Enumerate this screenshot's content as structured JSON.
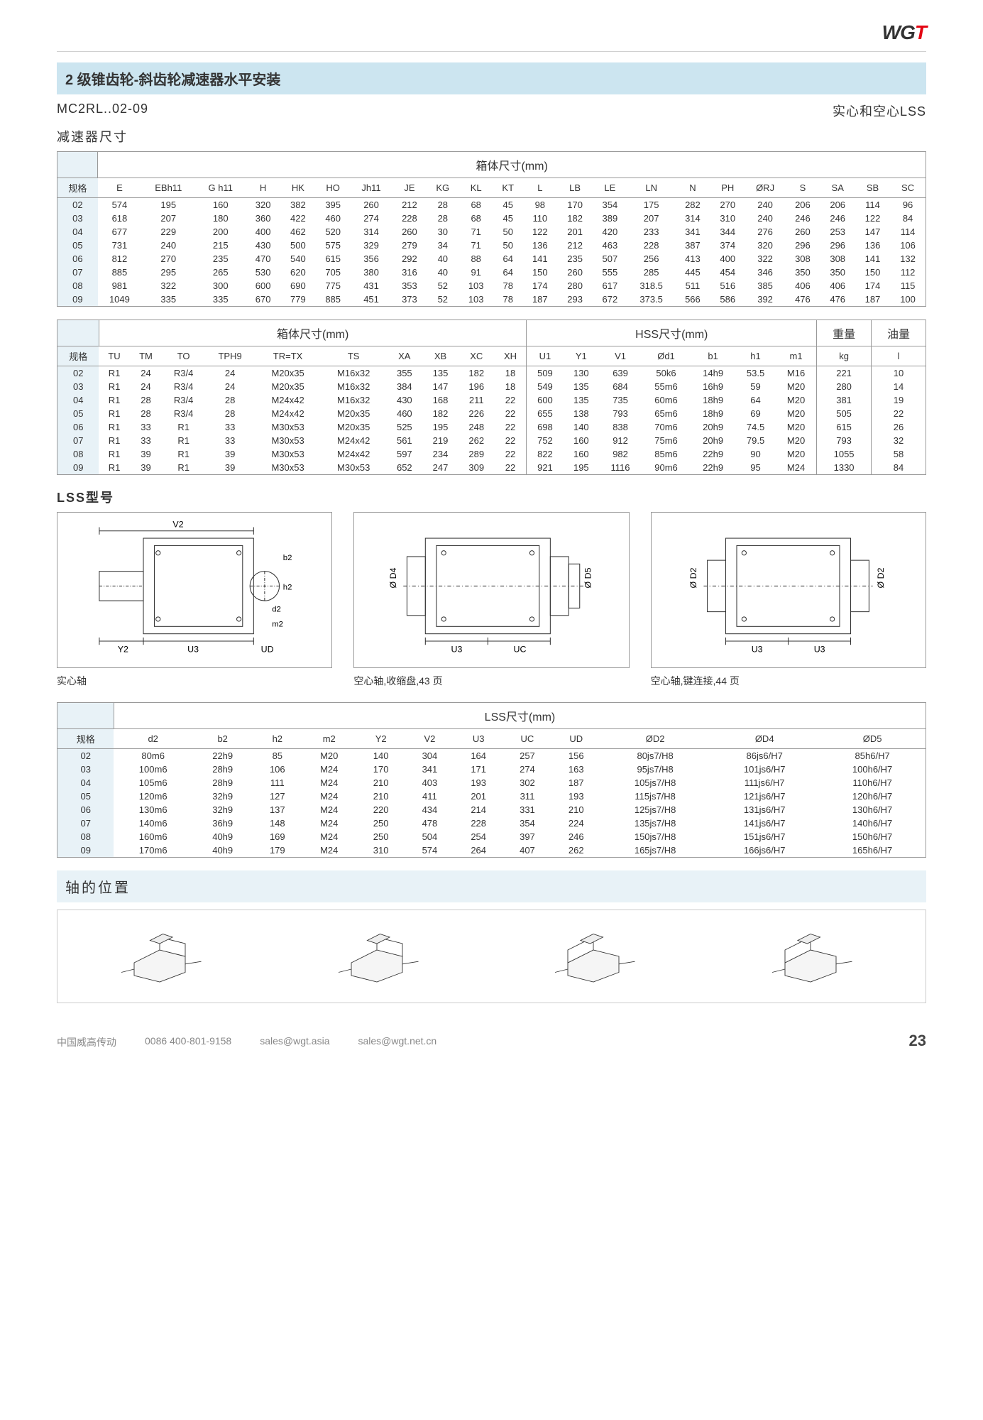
{
  "logo_black": "WG",
  "logo_red": "T",
  "title": "2 级锥齿轮-斜齿轮减速器水平安装",
  "model_code": "MC2RL..02-09",
  "shaft_note": "实心和空心LSS",
  "dim_label": "减速器尺寸",
  "table1": {
    "group": "箱体尺寸(mm)",
    "spec_header": "规格",
    "cols": [
      "E",
      "EBh11",
      "G h11",
      "H",
      "HK",
      "HO",
      "Jh11",
      "JE",
      "KG",
      "KL",
      "KT",
      "L",
      "LB",
      "LE",
      "LN",
      "N",
      "PH",
      "ØRJ",
      "S",
      "SA",
      "SB",
      "SC"
    ],
    "rows": [
      {
        "spec": "02",
        "v": [
          "574",
          "195",
          "160",
          "320",
          "382",
          "395",
          "260",
          "212",
          "28",
          "68",
          "45",
          "98",
          "170",
          "354",
          "175",
          "282",
          "270",
          "240",
          "206",
          "206",
          "114",
          "96"
        ]
      },
      {
        "spec": "03",
        "v": [
          "618",
          "207",
          "180",
          "360",
          "422",
          "460",
          "274",
          "228",
          "28",
          "68",
          "45",
          "110",
          "182",
          "389",
          "207",
          "314",
          "310",
          "240",
          "246",
          "246",
          "122",
          "84"
        ]
      },
      {
        "spec": "04",
        "v": [
          "677",
          "229",
          "200",
          "400",
          "462",
          "520",
          "314",
          "260",
          "30",
          "71",
          "50",
          "122",
          "201",
          "420",
          "233",
          "341",
          "344",
          "276",
          "260",
          "253",
          "147",
          "114"
        ]
      },
      {
        "spec": "05",
        "v": [
          "731",
          "240",
          "215",
          "430",
          "500",
          "575",
          "329",
          "279",
          "34",
          "71",
          "50",
          "136",
          "212",
          "463",
          "228",
          "387",
          "374",
          "320",
          "296",
          "296",
          "136",
          "106"
        ]
      },
      {
        "spec": "06",
        "v": [
          "812",
          "270",
          "235",
          "470",
          "540",
          "615",
          "356",
          "292",
          "40",
          "88",
          "64",
          "141",
          "235",
          "507",
          "256",
          "413",
          "400",
          "322",
          "308",
          "308",
          "141",
          "132"
        ]
      },
      {
        "spec": "07",
        "v": [
          "885",
          "295",
          "265",
          "530",
          "620",
          "705",
          "380",
          "316",
          "40",
          "91",
          "64",
          "150",
          "260",
          "555",
          "285",
          "445",
          "454",
          "346",
          "350",
          "350",
          "150",
          "112"
        ]
      },
      {
        "spec": "08",
        "v": [
          "981",
          "322",
          "300",
          "600",
          "690",
          "775",
          "431",
          "353",
          "52",
          "103",
          "78",
          "174",
          "280",
          "617",
          "318.5",
          "511",
          "516",
          "385",
          "406",
          "406",
          "174",
          "115"
        ]
      },
      {
        "spec": "09",
        "v": [
          "1049",
          "335",
          "335",
          "670",
          "779",
          "885",
          "451",
          "373",
          "52",
          "103",
          "78",
          "187",
          "293",
          "672",
          "373.5",
          "566",
          "586",
          "392",
          "476",
          "476",
          "187",
          "100"
        ]
      }
    ]
  },
  "table2": {
    "group1": "箱体尺寸(mm)",
    "group2": "HSS尺寸(mm)",
    "group3": "重量",
    "group4": "油量",
    "spec_header": "规格",
    "cols1": [
      "TU",
      "TM",
      "TO",
      "TPH9",
      "TR=TX",
      "TS",
      "XA",
      "XB",
      "XC",
      "XH"
    ],
    "cols2": [
      "U1",
      "Y1",
      "V1",
      "Ød1",
      "b1",
      "h1",
      "m1"
    ],
    "cols3": [
      "kg"
    ],
    "cols4": [
      "l"
    ],
    "rows": [
      {
        "spec": "02",
        "v": [
          "R1",
          "24",
          "R3/4",
          "24",
          "M20x35",
          "M16x32",
          "355",
          "135",
          "182",
          "18",
          "509",
          "130",
          "639",
          "50k6",
          "14h9",
          "53.5",
          "M16",
          "221",
          "10"
        ]
      },
      {
        "spec": "03",
        "v": [
          "R1",
          "24",
          "R3/4",
          "24",
          "M20x35",
          "M16x32",
          "384",
          "147",
          "196",
          "18",
          "549",
          "135",
          "684",
          "55m6",
          "16h9",
          "59",
          "M20",
          "280",
          "14"
        ]
      },
      {
        "spec": "04",
        "v": [
          "R1",
          "28",
          "R3/4",
          "28",
          "M24x42",
          "M16x32",
          "430",
          "168",
          "211",
          "22",
          "600",
          "135",
          "735",
          "60m6",
          "18h9",
          "64",
          "M20",
          "381",
          "19"
        ]
      },
      {
        "spec": "05",
        "v": [
          "R1",
          "28",
          "R3/4",
          "28",
          "M24x42",
          "M20x35",
          "460",
          "182",
          "226",
          "22",
          "655",
          "138",
          "793",
          "65m6",
          "18h9",
          "69",
          "M20",
          "505",
          "22"
        ]
      },
      {
        "spec": "06",
        "v": [
          "R1",
          "33",
          "R1",
          "33",
          "M30x53",
          "M20x35",
          "525",
          "195",
          "248",
          "22",
          "698",
          "140",
          "838",
          "70m6",
          "20h9",
          "74.5",
          "M20",
          "615",
          "26"
        ]
      },
      {
        "spec": "07",
        "v": [
          "R1",
          "33",
          "R1",
          "33",
          "M30x53",
          "M24x42",
          "561",
          "219",
          "262",
          "22",
          "752",
          "160",
          "912",
          "75m6",
          "20h9",
          "79.5",
          "M20",
          "793",
          "32"
        ]
      },
      {
        "spec": "08",
        "v": [
          "R1",
          "39",
          "R1",
          "39",
          "M30x53",
          "M24x42",
          "597",
          "234",
          "289",
          "22",
          "822",
          "160",
          "982",
          "85m6",
          "22h9",
          "90",
          "M20",
          "1055",
          "58"
        ]
      },
      {
        "spec": "09",
        "v": [
          "R1",
          "39",
          "R1",
          "39",
          "M30x53",
          "M30x53",
          "652",
          "247",
          "309",
          "22",
          "921",
          "195",
          "1116",
          "90m6",
          "22h9",
          "95",
          "M24",
          "1330",
          "84"
        ]
      }
    ]
  },
  "lss_label": "LSS型号",
  "diagram_captions": [
    "实心轴",
    "空心轴,收缩盘,43 页",
    "空心轴,键连接,44 页"
  ],
  "diag1_labels": {
    "V2": "V2",
    "b2": "b2",
    "h2": "h2",
    "d2": "d2",
    "m2": "m2",
    "Y2": "Y2",
    "U3": "U3",
    "UD": "UD"
  },
  "diag2_labels": {
    "D4": "Ø D4",
    "D5": "Ø D5",
    "U3": "U3",
    "UC": "UC"
  },
  "diag3_labels": {
    "D2a": "Ø D2",
    "D2b": "Ø D2",
    "U3a": "U3",
    "U3b": "U3"
  },
  "table3": {
    "group": "LSS尺寸(mm)",
    "spec_header": "规格",
    "cols": [
      "d2",
      "b2",
      "h2",
      "m2",
      "Y2",
      "V2",
      "U3",
      "UC",
      "UD",
      "ØD2",
      "ØD4",
      "ØD5"
    ],
    "rows": [
      {
        "spec": "02",
        "v": [
          "80m6",
          "22h9",
          "85",
          "M20",
          "140",
          "304",
          "164",
          "257",
          "156",
          "80js7/H8",
          "86js6/H7",
          "85h6/H7"
        ]
      },
      {
        "spec": "03",
        "v": [
          "100m6",
          "28h9",
          "106",
          "M24",
          "170",
          "341",
          "171",
          "274",
          "163",
          "95js7/H8",
          "101js6/H7",
          "100h6/H7"
        ]
      },
      {
        "spec": "04",
        "v": [
          "105m6",
          "28h9",
          "111",
          "M24",
          "210",
          "403",
          "193",
          "302",
          "187",
          "105js7/H8",
          "111js6/H7",
          "110h6/H7"
        ]
      },
      {
        "spec": "05",
        "v": [
          "120m6",
          "32h9",
          "127",
          "M24",
          "210",
          "411",
          "201",
          "311",
          "193",
          "115js7/H8",
          "121js6/H7",
          "120h6/H7"
        ]
      },
      {
        "spec": "06",
        "v": [
          "130m6",
          "32h9",
          "137",
          "M24",
          "220",
          "434",
          "214",
          "331",
          "210",
          "125js7/H8",
          "131js6/H7",
          "130h6/H7"
        ]
      },
      {
        "spec": "07",
        "v": [
          "140m6",
          "36h9",
          "148",
          "M24",
          "250",
          "478",
          "228",
          "354",
          "224",
          "135js7/H8",
          "141js6/H7",
          "140h6/H7"
        ]
      },
      {
        "spec": "08",
        "v": [
          "160m6",
          "40h9",
          "169",
          "M24",
          "250",
          "504",
          "254",
          "397",
          "246",
          "150js7/H8",
          "151js6/H7",
          "150h6/H7"
        ]
      },
      {
        "spec": "09",
        "v": [
          "170m6",
          "40h9",
          "179",
          "M24",
          "310",
          "574",
          "264",
          "407",
          "262",
          "165js7/H8",
          "166js6/H7",
          "165h6/H7"
        ]
      }
    ]
  },
  "shaft_pos_label": "轴的位置",
  "footer": {
    "company": "中国威高传动",
    "phone": "0086 400-801-9158",
    "email1": "sales@wgt.asia",
    "email2": "sales@wgt.net.cn",
    "page": "23"
  }
}
